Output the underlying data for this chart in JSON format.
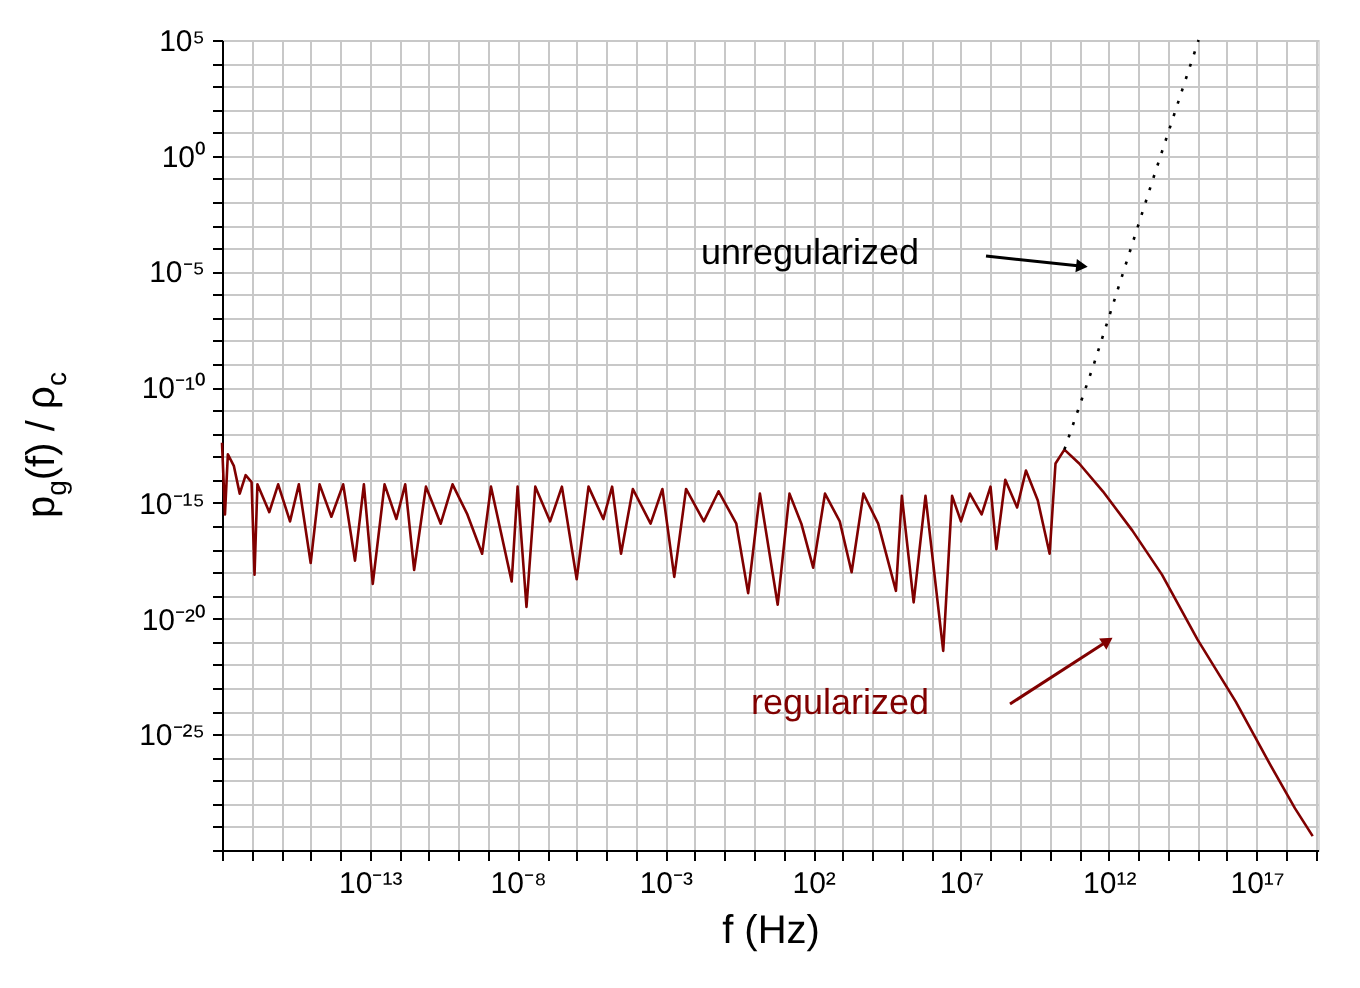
{
  "chart_data": {
    "type": "line",
    "xlabel": "f (Hz)",
    "ylabel": "p$_{g}$(f) / ρ$_{c}$",
    "log": "xy",
    "grid": true,
    "legend": false,
    "marker": "none",
    "xlim": [
      1e-18,
      1.2e+19
    ],
    "ylim": [
      1e-30,
      100000.0
    ],
    "xticks": [
      {
        "value": 1e-18,
        "label": null
      },
      {
        "value": 1e-17,
        "label": null
      },
      {
        "value": 1e-16,
        "label": null
      },
      {
        "value": 1e-15,
        "label": null
      },
      {
        "value": 1e-14,
        "label": null
      },
      {
        "value": 1e-13,
        "label": "10⁻¹³"
      },
      {
        "value": 1e-12,
        "label": null
      },
      {
        "value": 1e-11,
        "label": null
      },
      {
        "value": 1e-10,
        "label": null
      },
      {
        "value": 1e-09,
        "label": null
      },
      {
        "value": 1e-08,
        "label": "10⁻⁸"
      },
      {
        "value": 1e-07,
        "label": null
      },
      {
        "value": 1e-06,
        "label": null
      },
      {
        "value": 1e-05,
        "label": null
      },
      {
        "value": 0.0001,
        "label": null
      },
      {
        "value": 0.001,
        "label": "10⁻³"
      },
      {
        "value": 0.01,
        "label": null
      },
      {
        "value": 0.1,
        "label": null
      },
      {
        "value": 1,
        "label": null
      },
      {
        "value": 10,
        "label": null
      },
      {
        "value": 100,
        "label": "10²"
      },
      {
        "value": 1000.0,
        "label": null
      },
      {
        "value": 10000.0,
        "label": null
      },
      {
        "value": 100000.0,
        "label": null
      },
      {
        "value": 1000000.0,
        "label": null
      },
      {
        "value": 10000000.0,
        "label": "10⁷"
      },
      {
        "value": 100000000.0,
        "label": null
      },
      {
        "value": 1000000000.0,
        "label": null
      },
      {
        "value": 10000000000.0,
        "label": null
      },
      {
        "value": 100000000000.0,
        "label": null
      },
      {
        "value": 1000000000000.0,
        "label": "10¹²"
      },
      {
        "value": 10000000000000.0,
        "label": null
      },
      {
        "value": 100000000000000.0,
        "label": null
      },
      {
        "value": 1000000000000000.0,
        "label": null
      },
      {
        "value": 1e+16,
        "label": null
      },
      {
        "value": 1e+17,
        "label": "10¹⁷"
      },
      {
        "value": 1e+18,
        "label": null
      },
      {
        "value": 1e+19,
        "label": null
      }
    ],
    "yticks": [
      {
        "value": 1e-30,
        "label": null
      },
      {
        "value": 1e-29,
        "label": null
      },
      {
        "value": 1e-28,
        "label": null
      },
      {
        "value": 1e-27,
        "label": null
      },
      {
        "value": 1e-26,
        "label": null
      },
      {
        "value": 1e-25,
        "label": "10⁻²⁵"
      },
      {
        "value": 1e-24,
        "label": null
      },
      {
        "value": 1e-23,
        "label": null
      },
      {
        "value": 1e-22,
        "label": null
      },
      {
        "value": 1e-21,
        "label": null
      },
      {
        "value": 1e-20,
        "label": "10⁻²⁰"
      },
      {
        "value": 1e-19,
        "label": null
      },
      {
        "value": 1e-18,
        "label": null
      },
      {
        "value": 1e-17,
        "label": null
      },
      {
        "value": 1e-16,
        "label": null
      },
      {
        "value": 1e-15,
        "label": "10⁻¹⁵"
      },
      {
        "value": 1e-14,
        "label": null
      },
      {
        "value": 1e-13,
        "label": null
      },
      {
        "value": 1e-12,
        "label": null
      },
      {
        "value": 1e-11,
        "label": null
      },
      {
        "value": 1e-10,
        "label": "10⁻¹⁰"
      },
      {
        "value": 1e-09,
        "label": null
      },
      {
        "value": 1e-08,
        "label": null
      },
      {
        "value": 1e-07,
        "label": null
      },
      {
        "value": 1e-06,
        "label": null
      },
      {
        "value": 1e-05,
        "label": "10⁻⁵"
      },
      {
        "value": 0.0001,
        "label": null
      },
      {
        "value": 0.001,
        "label": null
      },
      {
        "value": 0.01,
        "label": null
      },
      {
        "value": 0.1,
        "label": null
      },
      {
        "value": 1,
        "label": "10⁰"
      },
      {
        "value": 10,
        "label": null
      },
      {
        "value": 100,
        "label": null
      },
      {
        "value": 1000.0,
        "label": null
      },
      {
        "value": 10000.0,
        "label": null
      },
      {
        "value": 100000.0,
        "label": "10⁵"
      }
    ],
    "series": [
      {
        "color": "#800000",
        "line_style": "solid",
        "x": [
          1e-18,
          1.26e-18,
          1.58e-18,
          2.51e-18,
          3.98e-18,
          6.31e-18,
          1e-17,
          1.26e-17,
          1.58e-17,
          3.98e-17,
          7.94e-17,
          2e-16,
          3.98e-16,
          1e-15,
          2e-15,
          5.01e-15,
          1.26e-14,
          3.16e-14,
          6.31e-14,
          1.26e-13,
          3.16e-13,
          7.94e-13,
          1.58e-12,
          3.16e-12,
          7.94e-12,
          2.51e-11,
          6.31e-11,
          2e-10,
          6.31e-10,
          1.26e-09,
          6.31e-09,
          1e-08,
          2e-08,
          3.98e-08,
          1.26e-07,
          3.16e-07,
          1e-06,
          2.51e-06,
          7.94e-06,
          1.58e-05,
          3.16e-05,
          7.94e-05,
          0.000316,
          0.000794,
          0.002,
          0.00501,
          0.02,
          0.0631,
          0.251,
          0.631,
          1.58,
          6.31,
          15.8,
          39.8,
          100,
          251,
          794,
          2000,
          5010,
          15800,
          63100,
          100000.0,
          251000.0,
          631000.0,
          2510000.0,
          5010000.0,
          10000000.0,
          20000000.0,
          50100000.0,
          100000000.0,
          158000000.0,
          316000000.0,
          794000000.0,
          1580000000.0,
          3980000000.0,
          10000000000.0,
          15800000000.0,
          31600000000.0,
          100000000000.0,
          631000000000.0,
          6310000000000.0,
          63100000000000.0,
          1000000000000000.0,
          2e+16,
          3.16e+17,
          2e+18,
          7.94e+18
        ],
        "values": [
          3.98e-13,
          3.16e-16,
          1.26e-13,
          3.98e-14,
          2.51e-15,
          1.58e-14,
          7.94e-15,
          7.94e-19,
          6.31e-15,
          3.98e-16,
          6.31e-15,
          1.58e-16,
          6.31e-15,
          2.51e-18,
          6.31e-15,
          2.51e-16,
          6.31e-15,
          3.16e-18,
          6.31e-15,
          3.16e-19,
          6.31e-15,
          2e-16,
          6.31e-15,
          1.26e-18,
          5.01e-15,
          1.26e-16,
          6.31e-15,
          3.16e-16,
          6.31e-18,
          5.01e-15,
          3.98e-19,
          5.01e-15,
          3.16e-20,
          5.01e-15,
          1.58e-16,
          5.01e-15,
          5.01e-19,
          5.01e-15,
          2e-16,
          5.01e-15,
          6.31e-18,
          3.98e-15,
          1.26e-16,
          3.98e-15,
          6.31e-19,
          3.98e-15,
          1.58e-16,
          3.16e-15,
          1.26e-16,
          1.26e-19,
          2.51e-15,
          3.98e-20,
          2.51e-15,
          1.26e-16,
          1.58e-18,
          2.51e-15,
          1.58e-16,
          1e-18,
          2.51e-15,
          1.26e-16,
          1.58e-19,
          2e-15,
          5.01e-20,
          2e-15,
          3.98e-22,
          2e-15,
          1.58e-16,
          2.51e-15,
          3.16e-16,
          5.01e-15,
          1e-17,
          1e-14,
          6.31e-16,
          2.51e-14,
          1.26e-15,
          6.31e-18,
          5.01e-14,
          2e-13,
          5.01e-14,
          3.16e-15,
          6.31e-17,
          7.94e-19,
          1.26e-21,
          2.51e-24,
          3.98e-27,
          6.31e-29,
          3.98e-30
        ]
      },
      {
        "color": "#000000",
        "line_style": "dotted",
        "x": [
          31600000000.0,
          316000000000.0,
          3160000000000.0,
          31600000000000.0,
          316000000000000.0,
          1100000000000000.0
        ],
        "values": [
          2e-13,
          1e-09,
          1e-05,
          0.1,
          794,
          100000.0
        ]
      }
    ],
    "annotations": [
      "regularized",
      "unregularized"
    ]
  }
}
